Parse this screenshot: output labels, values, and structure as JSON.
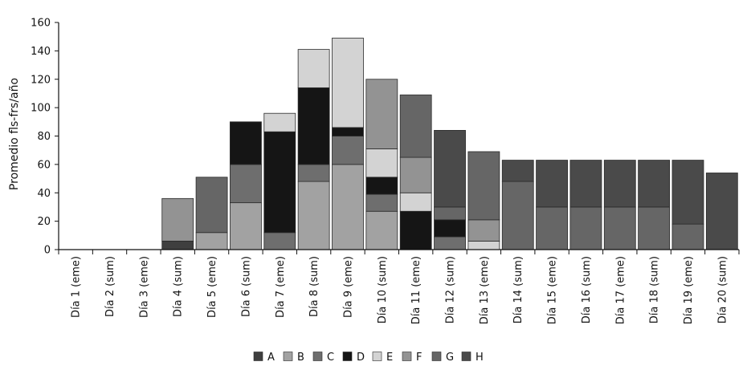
{
  "chart_data": {
    "type": "bar",
    "stacked": true,
    "ylabel": "Promedio fls-frs/año",
    "xlabel": "",
    "ylim": [
      0,
      160
    ],
    "yticks": [
      0,
      20,
      40,
      60,
      80,
      100,
      120,
      140,
      160
    ],
    "grid": false,
    "legend_position": "bottom",
    "categories": [
      "Día 1 (eme)",
      "Día 2 (sum)",
      "Día 3 (eme)",
      "Día 4 (sum)",
      "Día 5 (eme)",
      "Día 6 (sum)",
      "Día 7 (eme)",
      "Día 8 (sum)",
      "Día 9 (eme)",
      "Día 10 (sum)",
      "Día 11 (eme)",
      "Día 12 (sum)",
      "Día 13 (eme)",
      "Día 14 (sum)",
      "Día 15 (eme)",
      "Día 16 (sum)",
      "Día 17 (eme)",
      "Día 18 (sum)",
      "Día 19 (eme)",
      "Día 20 (sum)"
    ],
    "series": [
      {
        "name": "A",
        "color": "#3f3f3f",
        "values": [
          0,
          0,
          0,
          6,
          0,
          0,
          0,
          0,
          0,
          0,
          0,
          0,
          0,
          0,
          0,
          0,
          0,
          0,
          0,
          0
        ]
      },
      {
        "name": "B",
        "color": "#a2a2a2",
        "values": [
          0,
          0,
          0,
          0,
          12,
          33,
          0,
          48,
          60,
          27,
          0,
          0,
          0,
          0,
          0,
          0,
          0,
          0,
          0,
          0
        ]
      },
      {
        "name": "C",
        "color": "#6e6e6e",
        "values": [
          0,
          0,
          0,
          0,
          0,
          27,
          12,
          12,
          20,
          12,
          0,
          9,
          0,
          0,
          0,
          0,
          0,
          0,
          0,
          0
        ]
      },
      {
        "name": "D",
        "color": "#151515",
        "values": [
          0,
          0,
          0,
          0,
          0,
          30,
          71,
          54,
          6,
          12,
          27,
          12,
          0,
          0,
          0,
          0,
          0,
          0,
          0,
          0
        ]
      },
      {
        "name": "E",
        "color": "#d3d3d3",
        "values": [
          0,
          0,
          0,
          0,
          0,
          0,
          13,
          27,
          63,
          20,
          13,
          0,
          6,
          0,
          0,
          0,
          0,
          0,
          0,
          0
        ]
      },
      {
        "name": "F",
        "color": "#939393",
        "values": [
          0,
          0,
          0,
          30,
          0,
          0,
          0,
          0,
          0,
          49,
          25,
          0,
          15,
          0,
          0,
          0,
          0,
          0,
          0,
          0
        ]
      },
      {
        "name": "G",
        "color": "#666666",
        "values": [
          0,
          0,
          0,
          0,
          39,
          0,
          0,
          0,
          0,
          0,
          44,
          9,
          48,
          48,
          30,
          30,
          30,
          30,
          18,
          0
        ]
      },
      {
        "name": "H",
        "color": "#4a4a4a",
        "values": [
          0,
          0,
          0,
          0,
          0,
          0,
          0,
          0,
          0,
          0,
          0,
          54,
          0,
          15,
          33,
          33,
          33,
          33,
          45,
          54
        ]
      }
    ]
  }
}
